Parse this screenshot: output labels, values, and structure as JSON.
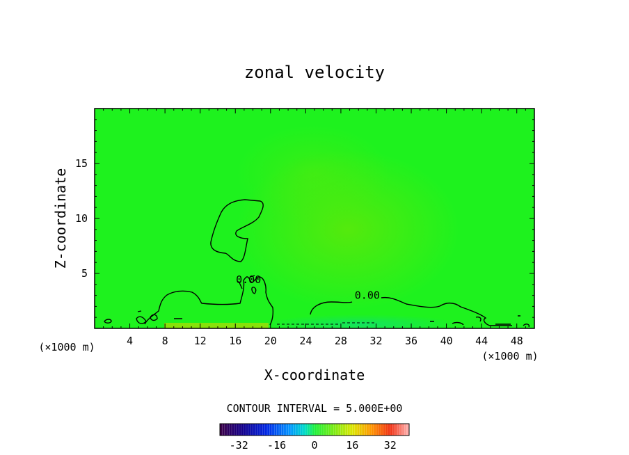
{
  "chart_data": {
    "type": "heatmap",
    "title": "zonal velocity",
    "xlabel": "X-coordinate",
    "ylabel": "Z-coordinate",
    "x_unit": "(×1000 m)",
    "x_unit_right": "(×1000 m)",
    "xlim": [
      0,
      50
    ],
    "ylim": [
      0,
      20
    ],
    "x_ticks": [
      "4",
      "8",
      "12",
      "16",
      "20",
      "24",
      "28",
      "32",
      "36",
      "40",
      "44",
      "48"
    ],
    "x_tick_values": [
      4,
      8,
      12,
      16,
      20,
      24,
      28,
      32,
      36,
      40,
      44,
      48
    ],
    "y_ticks": [
      "5",
      "10",
      "15"
    ],
    "y_tick_values": [
      5,
      10,
      15
    ],
    "contour_labels": [
      {
        "text": "0.00",
        "x": 31,
        "z": 2.7
      },
      {
        "text": "0.00",
        "x": 17.5,
        "z": 4.1
      }
    ],
    "contour_interval_text": "CONTOUR INTERVAL = 5.000E+00",
    "colorbar": {
      "range": [
        -40,
        40
      ],
      "ticks": [
        "-32",
        "-16",
        "0",
        "16",
        "32"
      ],
      "tick_values": [
        -32,
        -16,
        0,
        16,
        32
      ],
      "steps": 80
    },
    "colors": {
      "field_background": "#1ef21e",
      "positive_core": "#5ee80a",
      "surface_positive": "#88e20a",
      "surface_negative": "#12e268"
    }
  }
}
